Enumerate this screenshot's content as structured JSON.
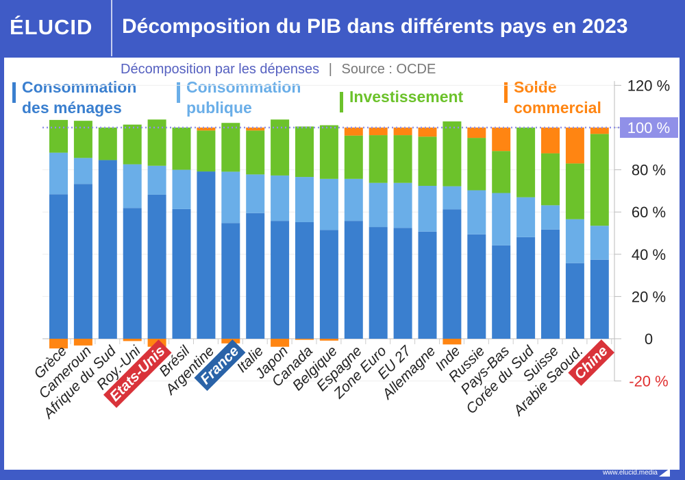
{
  "header": {
    "logo": "ÉLUCID",
    "title": "Décomposition du PIB dans différents pays en 2023"
  },
  "subtitle": {
    "text": "Décomposition par les dépenses",
    "separator": "|",
    "source": "Source : OCDE"
  },
  "footer": {
    "url": "www.elucid.media"
  },
  "colors": {
    "menages": "#3a7fcf",
    "publique": "#6aaee8",
    "investissement": "#6cc22b",
    "solde": "#ff8512",
    "reference": "#9090e8",
    "highlight_red": "#d9333a",
    "highlight_blue": "#2a63a8"
  },
  "chart_data": {
    "type": "bar",
    "stacked": true,
    "title": "Décomposition du PIB dans différents pays en 2023",
    "ylim": [
      -20,
      120
    ],
    "yticks": [
      {
        "value": 120,
        "label": "120 %"
      },
      {
        "value": 100,
        "label": "100 %"
      },
      {
        "value": 80,
        "label": "80 %"
      },
      {
        "value": 60,
        "label": "60 %"
      },
      {
        "value": 40,
        "label": "40 %"
      },
      {
        "value": 20,
        "label": "20 %"
      },
      {
        "value": 0,
        "label": "0"
      },
      {
        "value": -20,
        "label": "-20 %"
      }
    ],
    "reference_line": 100,
    "grid": true,
    "legend_position": "top",
    "categories": [
      "Grèce",
      "Cameroun",
      "Afrique du Sud",
      "Roy.-Uni",
      "Etats-Unis",
      "Brésil",
      "Argentine",
      "France",
      "Italie",
      "Japon",
      "Canada",
      "Belgique",
      "Espagne",
      "Zone Euro",
      "EU 27",
      "Allemagne",
      "Inde",
      "Russie",
      "Pays-Bas",
      "Corée du Sud",
      "Suisse",
      "Arabie Saoud.",
      "Chine"
    ],
    "highlighted": {
      "Etats-Unis": "red",
      "France": "blue",
      "Chine": "red"
    },
    "series": [
      {
        "name": "Consommation des ménages",
        "legend": [
          "Consommation",
          "des ménages"
        ],
        "color": "#3a7fcf",
        "values": [
          68.4,
          73.3,
          84.6,
          61.9,
          68.2,
          61.4,
          79.2,
          54.8,
          59.5,
          55.8,
          55.2,
          51.5,
          55.8,
          52.9,
          52.5,
          50.7,
          61.3,
          49.4,
          44.2,
          48.1,
          51.7,
          35.8,
          37.4
        ]
      },
      {
        "name": "Consommation publique",
        "legend": [
          "Consommation",
          "publique"
        ],
        "color": "#6aaee8",
        "values": [
          19.7,
          12.3,
          0,
          20.7,
          13.7,
          18.6,
          0,
          24.3,
          18.3,
          21.5,
          21.4,
          24.2,
          19.9,
          20.9,
          21.3,
          21.7,
          10.9,
          20.9,
          24.8,
          18.9,
          11.5,
          20.8,
          16.1
        ]
      },
      {
        "name": "Investissement",
        "legend": [
          "Investissement"
        ],
        "color": "#6cc22b",
        "values": [
          15.5,
          17.6,
          15.4,
          18.8,
          21.9,
          20.0,
          19.4,
          23.1,
          20.8,
          26.5,
          23.9,
          25.4,
          20.5,
          22.6,
          22.6,
          23.3,
          30.7,
          24.8,
          19.9,
          33.0,
          24.6,
          26.4,
          43.5
        ]
      },
      {
        "name": "Solde commercial",
        "legend": [
          "Solde",
          "commercial"
        ],
        "color": "#ff8512",
        "values": [
          -4.6,
          -3.2,
          0,
          -1.1,
          -3.8,
          0,
          1.4,
          -2.2,
          1.4,
          -3.8,
          -0.5,
          -0.9,
          3.8,
          3.6,
          3.6,
          4.3,
          -2.7,
          4.9,
          11.1,
          0,
          12.2,
          17.0,
          3.0
        ]
      }
    ]
  }
}
